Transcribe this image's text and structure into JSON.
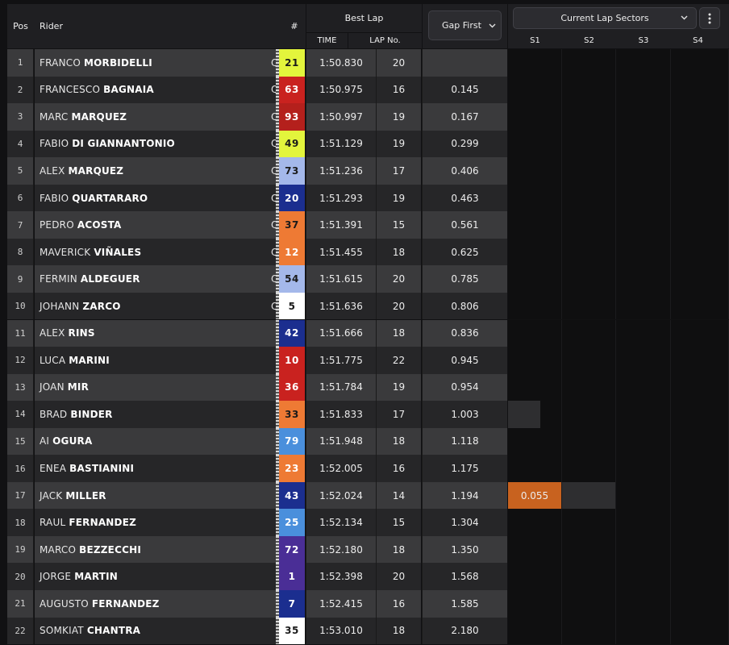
{
  "header": {
    "pos": "Pos",
    "rider": "Rider",
    "number": "#",
    "best_lap": "Best Lap",
    "time": "TIME",
    "lap_no": "LAP No.",
    "gap_first": "Gap First",
    "sectors_select": "Current Lap Sectors",
    "sectors": [
      "S1",
      "S2",
      "S3",
      "S4"
    ]
  },
  "colors": {
    "highlight_sector": "#c8621f"
  },
  "rows": [
    {
      "pos": "1",
      "first": "FRANCO",
      "last": "MORBIDELLI",
      "q": "Q2",
      "num": "21",
      "num_bg": "#e3f53c",
      "num_fg": "#1a1a1a",
      "time": "1:50.830",
      "lap": "20",
      "gap": ""
    },
    {
      "pos": "2",
      "first": "FRANCESCO",
      "last": "BAGNAIA",
      "q": "Q2",
      "num": "63",
      "num_bg": "#c9221f",
      "num_fg": "#ffffff",
      "time": "1:50.975",
      "lap": "16",
      "gap": "0.145"
    },
    {
      "pos": "3",
      "first": "MARC",
      "last": "MARQUEZ",
      "q": "Q2",
      "num": "93",
      "num_bg": "#b4201c",
      "num_fg": "#ffffff",
      "time": "1:50.997",
      "lap": "19",
      "gap": "0.167"
    },
    {
      "pos": "4",
      "first": "FABIO",
      "last": "DI GIANNANTONIO",
      "q": "Q2",
      "num": "49",
      "num_bg": "#e3f53c",
      "num_fg": "#1a1a1a",
      "time": "1:51.129",
      "lap": "19",
      "gap": "0.299"
    },
    {
      "pos": "5",
      "first": "ALEX",
      "last": "MARQUEZ",
      "q": "Q2",
      "num": "73",
      "num_bg": "#a4b8ea",
      "num_fg": "#1a1a1a",
      "time": "1:51.236",
      "lap": "17",
      "gap": "0.406"
    },
    {
      "pos": "6",
      "first": "FABIO",
      "last": "QUARTARARO",
      "q": "Q2",
      "num": "20",
      "num_bg": "#1b2e8f",
      "num_fg": "#ffffff",
      "time": "1:51.293",
      "lap": "19",
      "gap": "0.463"
    },
    {
      "pos": "7",
      "first": "PEDRO",
      "last": "ACOSTA",
      "q": "Q2",
      "num": "37",
      "num_bg": "#ee7a34",
      "num_fg": "#1a1a1a",
      "time": "1:51.391",
      "lap": "15",
      "gap": "0.561"
    },
    {
      "pos": "8",
      "first": "MAVERICK",
      "last": "VIÑALES",
      "q": "Q2",
      "num": "12",
      "num_bg": "#ee7a34",
      "num_fg": "#ffffff",
      "time": "1:51.455",
      "lap": "18",
      "gap": "0.625"
    },
    {
      "pos": "9",
      "first": "FERMIN",
      "last": "ALDEGUER",
      "q": "Q2",
      "num": "54",
      "num_bg": "#a4b8ea",
      "num_fg": "#1a1a1a",
      "time": "1:51.615",
      "lap": "20",
      "gap": "0.785"
    },
    {
      "pos": "10",
      "first": "JOHANN",
      "last": "ZARCO",
      "q": "Q2",
      "num": "5",
      "num_bg": "#ffffff",
      "num_fg": "#1a1a1a",
      "time": "1:51.636",
      "lap": "20",
      "gap": "0.806"
    },
    {
      "pos": "11",
      "first": "ALEX",
      "last": "RINS",
      "q": "",
      "num": "42",
      "num_bg": "#1b2e8f",
      "num_fg": "#ffffff",
      "time": "1:51.666",
      "lap": "18",
      "gap": "0.836"
    },
    {
      "pos": "12",
      "first": "LUCA",
      "last": "MARINI",
      "q": "",
      "num": "10",
      "num_bg": "#c9221f",
      "num_fg": "#ffffff",
      "time": "1:51.775",
      "lap": "22",
      "gap": "0.945"
    },
    {
      "pos": "13",
      "first": "JOAN",
      "last": "MIR",
      "q": "",
      "num": "36",
      "num_bg": "#c9221f",
      "num_fg": "#ffffff",
      "time": "1:51.784",
      "lap": "19",
      "gap": "0.954"
    },
    {
      "pos": "14",
      "first": "BRAD",
      "last": "BINDER",
      "q": "",
      "num": "33",
      "num_bg": "#ee7a34",
      "num_fg": "#1a1a1a",
      "time": "1:51.833",
      "lap": "17",
      "gap": "1.003"
    },
    {
      "pos": "15",
      "first": "AI",
      "last": "OGURA",
      "q": "",
      "num": "79",
      "num_bg": "#4a8fdc",
      "num_fg": "#ffffff",
      "time": "1:51.948",
      "lap": "18",
      "gap": "1.118"
    },
    {
      "pos": "16",
      "first": "ENEA",
      "last": "BASTIANINI",
      "q": "",
      "num": "23",
      "num_bg": "#ee7a34",
      "num_fg": "#ffffff",
      "time": "1:52.005",
      "lap": "16",
      "gap": "1.175"
    },
    {
      "pos": "17",
      "first": "JACK",
      "last": "MILLER",
      "q": "",
      "num": "43",
      "num_bg": "#1b2e8f",
      "num_fg": "#ffffff",
      "time": "1:52.024",
      "lap": "14",
      "gap": "1.194",
      "s1": "0.055"
    },
    {
      "pos": "18",
      "first": "RAUL",
      "last": "FERNANDEZ",
      "q": "",
      "num": "25",
      "num_bg": "#4a8fdc",
      "num_fg": "#ffffff",
      "time": "1:52.134",
      "lap": "15",
      "gap": "1.304"
    },
    {
      "pos": "19",
      "first": "MARCO",
      "last": "BEZZECCHI",
      "q": "",
      "num": "72",
      "num_bg": "#4a2e96",
      "num_fg": "#ffffff",
      "time": "1:52.180",
      "lap": "18",
      "gap": "1.350"
    },
    {
      "pos": "20",
      "first": "JORGE",
      "last": "MARTIN",
      "q": "",
      "num": "1",
      "num_bg": "#4a2e96",
      "num_fg": "#ffffff",
      "time": "1:52.398",
      "lap": "20",
      "gap": "1.568"
    },
    {
      "pos": "21",
      "first": "AUGUSTO",
      "last": "FERNANDEZ",
      "q": "",
      "num": "7",
      "num_bg": "#1b2e8f",
      "num_fg": "#ffffff",
      "time": "1:52.415",
      "lap": "16",
      "gap": "1.585"
    },
    {
      "pos": "22",
      "first": "SOMKIAT",
      "last": "CHANTRA",
      "q": "",
      "num": "35",
      "num_bg": "#ffffff",
      "num_fg": "#1a1a1a",
      "time": "1:53.010",
      "lap": "18",
      "gap": "2.180"
    }
  ]
}
